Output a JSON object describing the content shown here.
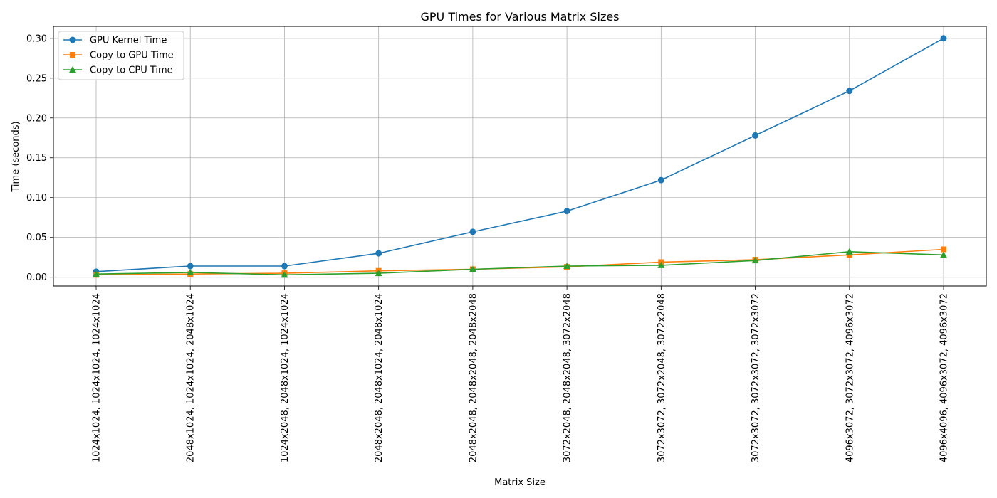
{
  "chart_data": {
    "type": "line",
    "title": "GPU Times for Various Matrix Sizes",
    "xlabel": "Matrix Size",
    "ylabel": "Time (seconds)",
    "categories": [
      "1024x1024, 1024x1024, 1024x1024",
      "2048x1024, 1024x1024, 2048x1024",
      "1024x2048, 2048x1024, 1024x1024",
      "2048x2048, 2048x1024, 2048x1024",
      "2048x2048, 2048x2048, 2048x2048",
      "3072x2048, 2048x2048, 3072x2048",
      "3072x3072, 3072x2048, 3072x2048",
      "3072x3072, 3072x3072, 3072x3072",
      "4096x3072, 3072x3072, 4096x3072",
      "4096x4096, 4096x3072, 4096x3072"
    ],
    "series": [
      {
        "name": "GPU Kernel Time",
        "color": "#1f77b4",
        "marker": "circle",
        "values": [
          0.007,
          0.014,
          0.014,
          0.03,
          0.057,
          0.083,
          0.122,
          0.178,
          0.234,
          0.3
        ]
      },
      {
        "name": "Copy to GPU Time",
        "color": "#ff7f0e",
        "marker": "square",
        "values": [
          0.003,
          0.004,
          0.005,
          0.008,
          0.01,
          0.013,
          0.019,
          0.022,
          0.028,
          0.035
        ]
      },
      {
        "name": "Copy to CPU Time",
        "color": "#2ca02c",
        "marker": "triangle",
        "values": [
          0.004,
          0.006,
          0.003,
          0.005,
          0.01,
          0.014,
          0.015,
          0.021,
          0.032,
          0.028
        ]
      }
    ],
    "yticks": [
      0.0,
      0.05,
      0.1,
      0.15,
      0.2,
      0.25,
      0.3
    ],
    "ytick_labels": [
      "0.00",
      "0.05",
      "0.10",
      "0.15",
      "0.20",
      "0.25",
      "0.30"
    ],
    "ylim": [
      -0.011,
      0.315
    ],
    "grid": true,
    "legend_position": "top-left"
  }
}
